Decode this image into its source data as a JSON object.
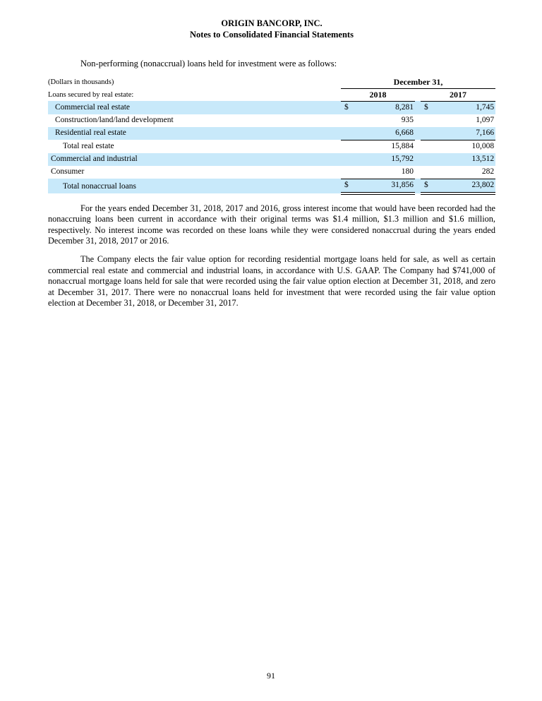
{
  "page": {
    "title_line1": "ORIGIN BANCORP, INC.",
    "title_line2": "Notes to Consolidated Financial Statements",
    "page_number": "91"
  },
  "intro_text": "Non-performing (nonaccrual) loans held for investment were as follows:",
  "table": {
    "units_note": "(Dollars in thousands)",
    "section_label": "Loans secured by real estate:",
    "period_header": "December 31,",
    "columns": [
      "2018",
      "2017"
    ],
    "dollar_sign": "$",
    "rows": [
      {
        "label": "Commercial real estate",
        "indent": 1,
        "dollar": true,
        "v2018": "8,281",
        "v2017": "1,745",
        "shaded": true,
        "rule_below": false,
        "double_rule_below": false
      },
      {
        "label": "Construction/land/land development",
        "indent": 1,
        "dollar": false,
        "v2018": "935",
        "v2017": "1,097",
        "shaded": false,
        "rule_below": false,
        "double_rule_below": false
      },
      {
        "label": "Residential real estate",
        "indent": 1,
        "dollar": false,
        "v2018": "6,668",
        "v2017": "7,166",
        "shaded": true,
        "rule_below": true,
        "double_rule_below": false
      },
      {
        "label": "Total real estate",
        "indent": 2,
        "dollar": false,
        "v2018": "15,884",
        "v2017": "10,008",
        "shaded": false,
        "rule_below": false,
        "double_rule_below": false
      },
      {
        "label": "Commercial and industrial",
        "indent": 0,
        "dollar": false,
        "v2018": "15,792",
        "v2017": "13,512",
        "shaded": true,
        "rule_below": false,
        "double_rule_below": false
      },
      {
        "label": "Consumer",
        "indent": 0,
        "dollar": false,
        "v2018": "180",
        "v2017": "282",
        "shaded": false,
        "rule_below": true,
        "double_rule_below": false
      },
      {
        "label": "Total nonaccrual loans",
        "indent": 2,
        "dollar": true,
        "v2018": "31,856",
        "v2017": "23,802",
        "shaded": true,
        "rule_below": false,
        "double_rule_below": true
      }
    ]
  },
  "paragraphs": {
    "p1": "For the years ended December 31, 2018, 2017 and 2016, gross interest income that would have been recorded had the nonaccruing loans been current in accordance with their original terms was $1.4 million, $1.3 million and $1.6 million, respectively. No interest income was recorded on these loans while they were considered nonaccrual during the years ended December 31, 2018, 2017 or 2016.",
    "p2": "The Company elects the fair value option for recording residential mortgage loans held for sale, as well as certain commercial real estate and commercial and industrial loans, in accordance with U.S. GAAP. The Company had $741,000 of nonaccrual mortgage loans held for sale that were recorded using the fair value option election at December 31, 2018, and zero at December 31, 2017. There were no nonaccrual loans held for investment that were recorded using the fair value option election at December 31, 2018, or December 31, 2017."
  },
  "colors": {
    "row_highlight": "#c8e9fa",
    "rule": "#000000",
    "text": "#000000",
    "background": "#ffffff"
  }
}
